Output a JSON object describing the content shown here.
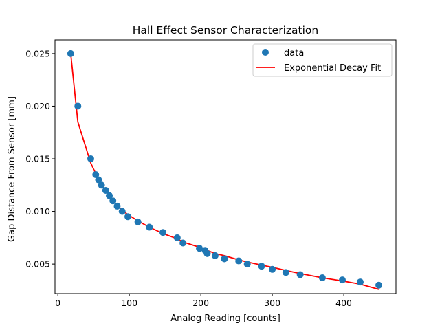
{
  "chart_data": {
    "type": "scatter",
    "title": "Hall Effect Sensor Characterization",
    "xlabel": "Analog Reading [counts]",
    "ylabel": "Gap Distance From Sensor [mm]",
    "xlim": [
      -4,
      473
    ],
    "ylim": [
      0.0022,
      0.0263
    ],
    "xticks": [
      0,
      100,
      200,
      300,
      400
    ],
    "xtick_labels": [
      "0",
      "100",
      "200",
      "300",
      "400"
    ],
    "yticks": [
      0.005,
      0.01,
      0.015,
      0.02,
      0.025
    ],
    "ytick_labels": [
      "0.005",
      "0.010",
      "0.015",
      "0.020",
      "0.025"
    ],
    "grid": false,
    "legend_position": "top-right",
    "series": [
      {
        "name": "data",
        "kind": "scatter",
        "color": "#1f77b4",
        "x": [
          18,
          28,
          46,
          53,
          57,
          61,
          67,
          72,
          77,
          83,
          90,
          98,
          112,
          128,
          147,
          167,
          175,
          198,
          206,
          209,
          220,
          233,
          253,
          265,
          285,
          300,
          319,
          339,
          370,
          398,
          423,
          449
        ],
        "y": [
          0.025,
          0.02,
          0.015,
          0.0135,
          0.013,
          0.0125,
          0.012,
          0.0115,
          0.011,
          0.0105,
          0.01,
          0.0095,
          0.009,
          0.0085,
          0.008,
          0.0075,
          0.007,
          0.0065,
          0.0063,
          0.006,
          0.0058,
          0.0055,
          0.0053,
          0.005,
          0.0048,
          0.0045,
          0.0042,
          0.004,
          0.0037,
          0.0035,
          0.0033,
          0.003
        ]
      },
      {
        "name": "Exponential Decay Fit",
        "kind": "line",
        "color": "#ff0000",
        "x": [
          18,
          28,
          46,
          53,
          57,
          61,
          67,
          72,
          77,
          83,
          90,
          98,
          112,
          128,
          147,
          167,
          175,
          198,
          206,
          209,
          220,
          233,
          253,
          265,
          285,
          300,
          319,
          339,
          370,
          398,
          423,
          449
        ],
        "y": [
          0.025,
          0.0185,
          0.0146,
          0.0136,
          0.013,
          0.0125,
          0.012,
          0.0115,
          0.011,
          0.0106,
          0.0101,
          0.0097,
          0.0091,
          0.0085,
          0.0079,
          0.0074,
          0.0071,
          0.0066,
          0.0064,
          0.0063,
          0.006,
          0.0058,
          0.0054,
          0.0052,
          0.0049,
          0.0047,
          0.0044,
          0.0041,
          0.0037,
          0.0034,
          0.0031,
          0.0026
        ]
      }
    ]
  }
}
